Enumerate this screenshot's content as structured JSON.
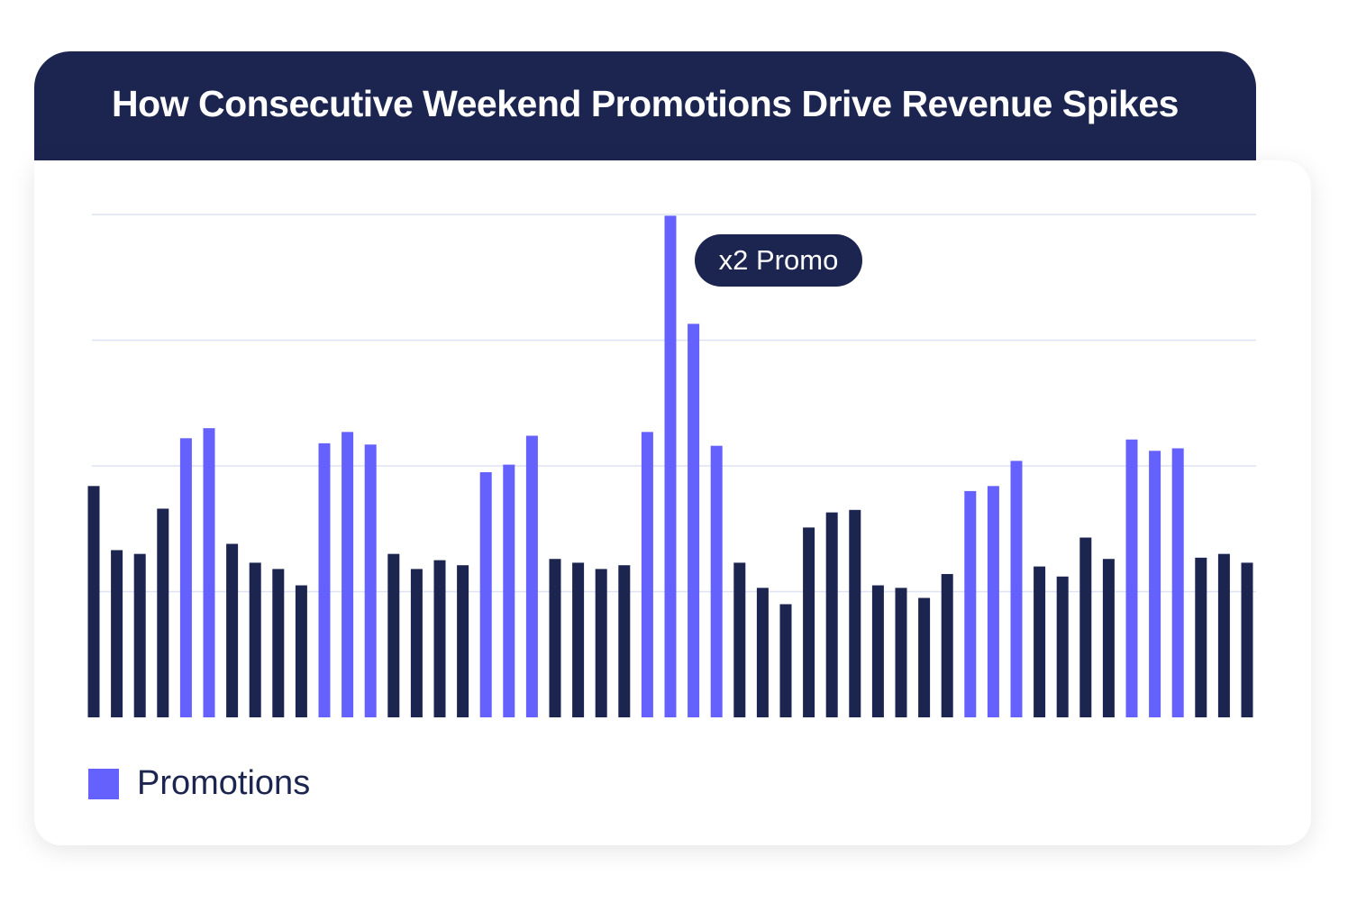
{
  "chart_data": {
    "type": "bar",
    "title": "How Consecutive Weekend Promotions Drive Revenue Spikes",
    "xlabel": "",
    "ylabel": "",
    "ylim": [
      0,
      4
    ],
    "grid": true,
    "gridlines": [
      1,
      2,
      3,
      4
    ],
    "legend": {
      "position": "bottom-left",
      "entries": [
        {
          "label": "Promotions",
          "color": "#6461fc"
        }
      ]
    },
    "colors": {
      "regular": "#1c2550",
      "promotion": "#6461fc"
    },
    "values": [
      1.84,
      1.33,
      1.3,
      1.66,
      2.22,
      2.3,
      1.38,
      1.23,
      1.18,
      1.05,
      2.18,
      2.27,
      2.17,
      1.3,
      1.18,
      1.25,
      1.21,
      1.95,
      2.01,
      2.24,
      1.26,
      1.23,
      1.18,
      1.21,
      2.27,
      3.99,
      3.13,
      2.16,
      1.23,
      1.03,
      0.9,
      1.51,
      1.63,
      1.65,
      1.05,
      1.03,
      0.95,
      1.14,
      1.8,
      1.84,
      2.04,
      1.2,
      1.12,
      1.43,
      1.26,
      2.21,
      2.12,
      2.14,
      1.27,
      1.3,
      1.23
    ],
    "promotion": [
      false,
      false,
      false,
      false,
      true,
      true,
      false,
      false,
      false,
      false,
      true,
      true,
      true,
      false,
      false,
      false,
      false,
      true,
      true,
      true,
      false,
      false,
      false,
      false,
      true,
      true,
      true,
      true,
      false,
      false,
      false,
      false,
      false,
      false,
      false,
      false,
      false,
      false,
      true,
      true,
      true,
      false,
      false,
      false,
      false,
      true,
      true,
      true,
      false,
      false,
      false
    ],
    "annotation": {
      "text": "x2 Promo",
      "bar_index": 25
    }
  }
}
